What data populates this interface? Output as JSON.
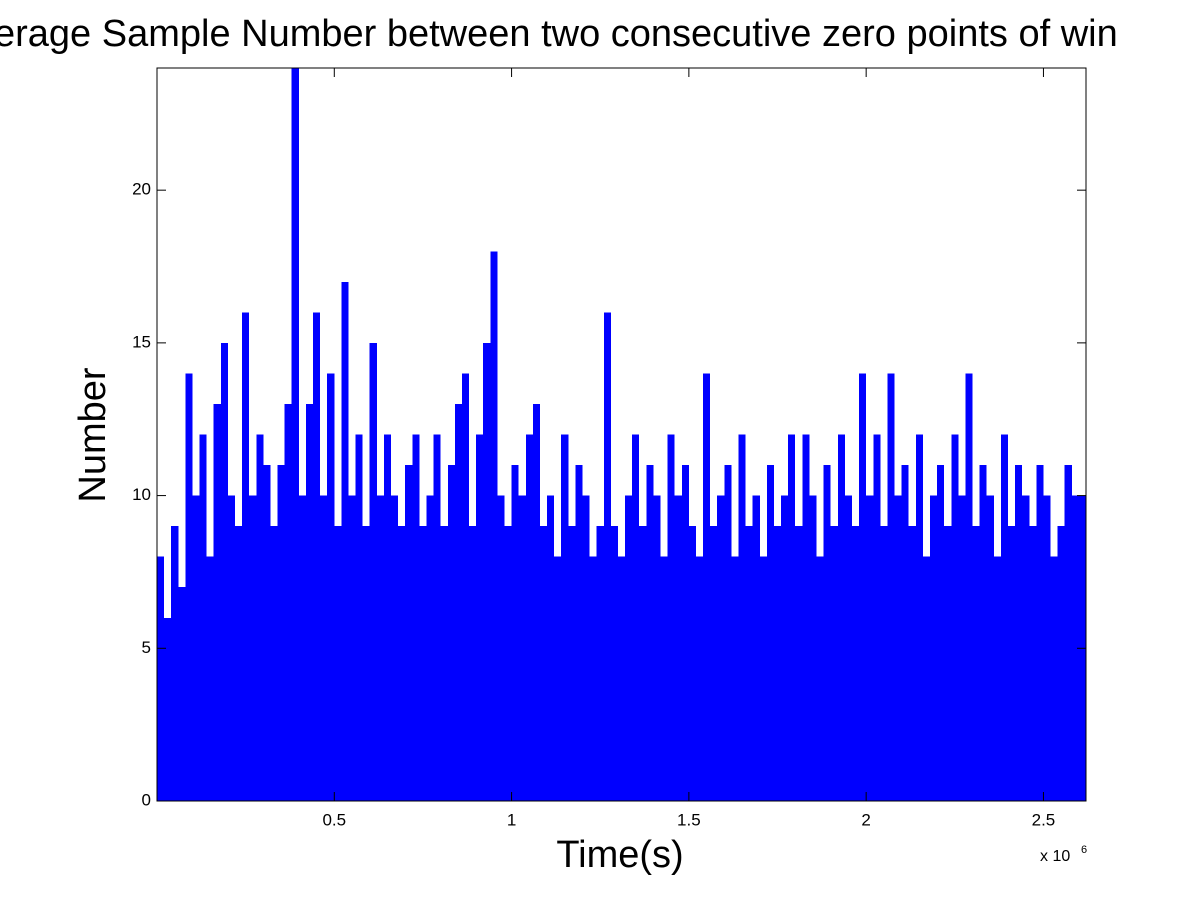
{
  "chart_data": {
    "type": "bar",
    "title": "erage Sample Number between two consecutive zero points of win",
    "x_label": "Time(s)",
    "y_label": "Number",
    "x_multiplier": "x 10",
    "x_exponent": "6",
    "color": "#0000ff",
    "xlim": [
      0,
      2.62
    ],
    "ylim": [
      0,
      24
    ],
    "xticks": [
      0.5,
      1,
      1.5,
      2,
      2.5
    ],
    "yticks": [
      0,
      5,
      10,
      15,
      20
    ],
    "grid": false,
    "x": [
      0.01,
      0.03,
      0.05,
      0.07,
      0.09,
      0.11,
      0.13,
      0.15,
      0.17,
      0.19,
      0.21,
      0.23,
      0.25,
      0.27,
      0.29,
      0.31,
      0.33,
      0.35,
      0.37,
      0.39,
      0.41,
      0.43,
      0.45,
      0.47,
      0.49,
      0.51,
      0.53,
      0.55,
      0.57,
      0.59,
      0.61,
      0.63,
      0.65,
      0.67,
      0.69,
      0.71,
      0.73,
      0.75,
      0.77,
      0.79,
      0.81,
      0.83,
      0.85,
      0.87,
      0.89,
      0.91,
      0.93,
      0.95,
      0.97,
      0.99,
      1.01,
      1.03,
      1.05,
      1.07,
      1.09,
      1.11,
      1.13,
      1.15,
      1.17,
      1.19,
      1.21,
      1.23,
      1.25,
      1.27,
      1.29,
      1.31,
      1.33,
      1.35,
      1.37,
      1.39,
      1.41,
      1.43,
      1.45,
      1.47,
      1.49,
      1.51,
      1.53,
      1.55,
      1.57,
      1.59,
      1.61,
      1.63,
      1.65,
      1.67,
      1.69,
      1.71,
      1.73,
      1.75,
      1.77,
      1.79,
      1.81,
      1.83,
      1.85,
      1.87,
      1.89,
      1.91,
      1.93,
      1.95,
      1.97,
      1.99,
      2.01,
      2.03,
      2.05,
      2.07,
      2.09,
      2.11,
      2.13,
      2.15,
      2.17,
      2.19,
      2.21,
      2.23,
      2.25,
      2.27,
      2.29,
      2.31,
      2.33,
      2.35,
      2.37,
      2.39,
      2.41,
      2.43,
      2.45,
      2.47,
      2.49,
      2.51,
      2.53,
      2.55,
      2.57,
      2.59,
      2.61
    ],
    "values": [
      8,
      6,
      9,
      7,
      14,
      10,
      12,
      8,
      13,
      15,
      10,
      9,
      16,
      10,
      12,
      11,
      9,
      11,
      13,
      24,
      10,
      13,
      16,
      10,
      14,
      9,
      17,
      10,
      12,
      9,
      15,
      10,
      12,
      10,
      9,
      11,
      12,
      9,
      10,
      12,
      9,
      11,
      13,
      14,
      9,
      12,
      15,
      18,
      10,
      9,
      11,
      10,
      12,
      13,
      9,
      10,
      8,
      12,
      9,
      11,
      10,
      8,
      9,
      16,
      9,
      8,
      10,
      12,
      9,
      11,
      10,
      8,
      12,
      10,
      11,
      9,
      8,
      14,
      9,
      10,
      11,
      8,
      12,
      9,
      10,
      8,
      11,
      9,
      10,
      12,
      9,
      12,
      10,
      8,
      11,
      9,
      12,
      10,
      9,
      14,
      10,
      12,
      9,
      14,
      10,
      11,
      9,
      12,
      8,
      10,
      11,
      9,
      12,
      10,
      14,
      9,
      11,
      10,
      8,
      12,
      9,
      11,
      10,
      9,
      11,
      10,
      8,
      9,
      11,
      10,
      10
    ]
  }
}
